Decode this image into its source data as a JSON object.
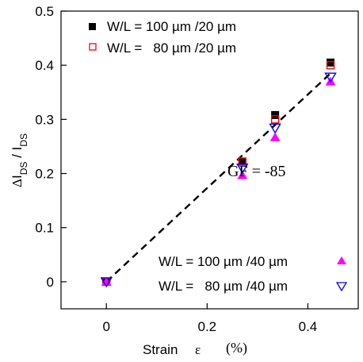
{
  "chart_data": {
    "type": "scatter",
    "x_ticks": [
      "0",
      "0.2",
      "0.4"
    ],
    "y_ticks": [
      "0",
      "0.1",
      "0.2",
      "0.3",
      "0.4",
      "0.5"
    ],
    "xlim": [
      -0.09,
      0.5
    ],
    "ylim": [
      -0.05,
      0.5
    ],
    "xlabel": {
      "main": "Strain",
      "symbol": "ε",
      "unit": "(%)"
    },
    "ylabel": {
      "delta": "Δ",
      "i1": "I",
      "sub1": "DS",
      "slash": " / ",
      "i2": "I",
      "sub2": "DS"
    },
    "series": [
      {
        "name": "W/L = 100 µm /20 µm",
        "marker": "square-filled",
        "color": "#000000",
        "x": [
          0,
          0.27,
          0.335,
          0.445
        ],
        "y": [
          0.0,
          0.222,
          0.308,
          0.405
        ]
      },
      {
        "name": "W/L =   80 µm /20 µm",
        "marker": "square-open",
        "color": "#ff0000",
        "x": [
          0,
          0.27,
          0.335,
          0.445
        ],
        "y": [
          0.0,
          0.222,
          0.3,
          0.4
        ]
      },
      {
        "name": "W/L = 100 µm /40 µm",
        "marker": "triangle-up-filled",
        "color": "#ff00ff",
        "x": [
          0,
          0.27,
          0.335,
          0.445
        ],
        "y": [
          0.0,
          0.197,
          0.267,
          0.37
        ]
      },
      {
        "name": "W/L =   80 µm /40 µm",
        "marker": "triangle-down-open",
        "color": "#0000ff",
        "x": [
          0,
          0.27,
          0.335,
          0.445
        ],
        "y": [
          0.0,
          0.21,
          0.284,
          0.378
        ]
      }
    ],
    "fit_line": {
      "style": "dashed",
      "color": "#000000",
      "x": [
        0,
        0.445
      ],
      "y": [
        0.0,
        0.385
      ]
    },
    "annotation": "GF = -85",
    "grid": false,
    "legend_top": [
      "W/L = 100 µm /20 µm",
      "W/L =   80 µm /20 µm"
    ],
    "legend_bottom": [
      "W/L = 100 µm /40 µm",
      "W/L =   80 µm /40 µm"
    ]
  }
}
